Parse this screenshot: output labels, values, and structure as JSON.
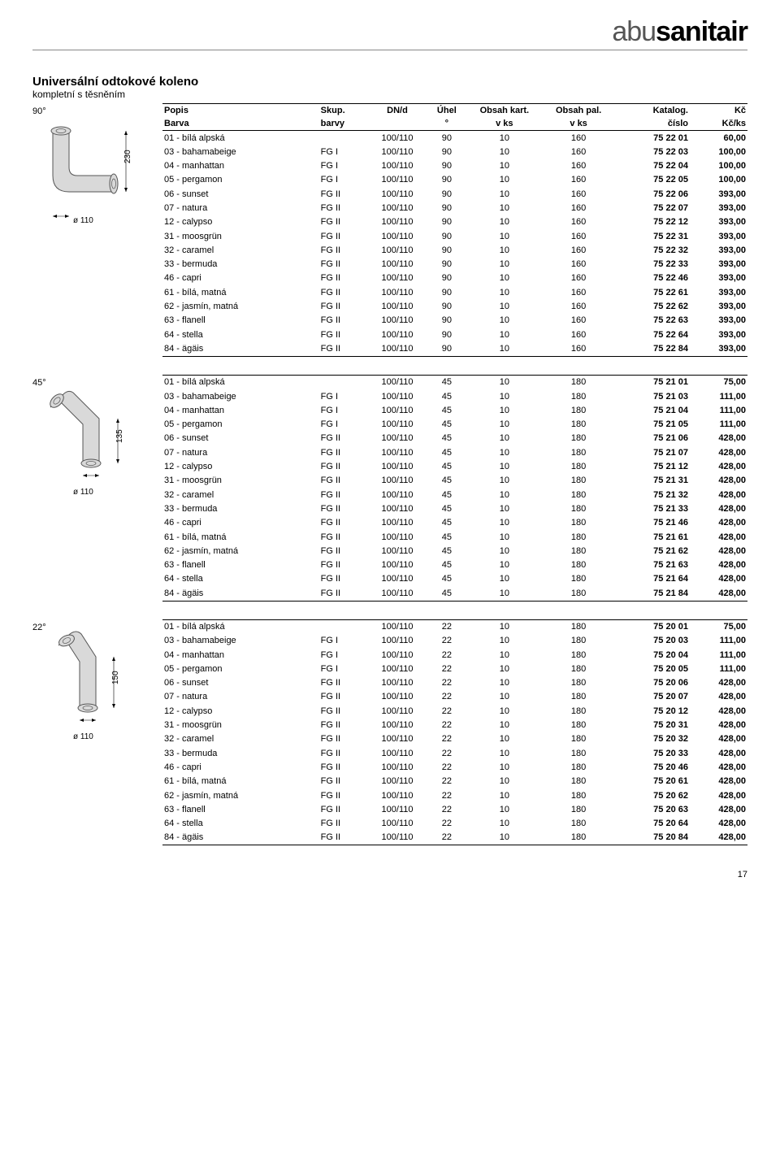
{
  "brand": {
    "part1": "abu",
    "part2": "sanitair"
  },
  "title": "Universální odtokové koleno",
  "subtitle": "kompletní s těsněním",
  "page_number": "17",
  "header": {
    "row1": [
      "Popis",
      "Skup.",
      "DN/d",
      "Úhel",
      "Obsah kart.",
      "Obsah pal.",
      "Katalog.",
      "Kč"
    ],
    "row2": [
      "Barva",
      "barvy",
      "",
      "°",
      "v ks",
      "v ks",
      "číslo",
      "Kč/ks"
    ]
  },
  "sections": [
    {
      "angle_label": "90°",
      "dim_label": "ø 110",
      "dim_v": "230",
      "svg_type": "elbow90",
      "rows": [
        [
          "01 - bílá alpská",
          "",
          "100/110",
          "90",
          "10",
          "160",
          "75 22 01",
          "60,00"
        ],
        [
          "03 - bahamabeige",
          "FG I",
          "100/110",
          "90",
          "10",
          "160",
          "75 22 03",
          "100,00"
        ],
        [
          "04 - manhattan",
          "FG I",
          "100/110",
          "90",
          "10",
          "160",
          "75 22 04",
          "100,00"
        ],
        [
          "05 - pergamon",
          "FG I",
          "100/110",
          "90",
          "10",
          "160",
          "75 22 05",
          "100,00"
        ],
        [
          "06 - sunset",
          "FG II",
          "100/110",
          "90",
          "10",
          "160",
          "75 22 06",
          "393,00"
        ],
        [
          "07 - natura",
          "FG II",
          "100/110",
          "90",
          "10",
          "160",
          "75 22 07",
          "393,00"
        ],
        [
          "12 - calypso",
          "FG II",
          "100/110",
          "90",
          "10",
          "160",
          "75 22 12",
          "393,00"
        ],
        [
          "31 - moosgrün",
          "FG II",
          "100/110",
          "90",
          "10",
          "160",
          "75 22 31",
          "393,00"
        ],
        [
          "32 - caramel",
          "FG II",
          "100/110",
          "90",
          "10",
          "160",
          "75 22 32",
          "393,00"
        ],
        [
          "33 - bermuda",
          "FG II",
          "100/110",
          "90",
          "10",
          "160",
          "75 22 33",
          "393,00"
        ],
        [
          "46 - capri",
          "FG II",
          "100/110",
          "90",
          "10",
          "160",
          "75 22 46",
          "393,00"
        ],
        [
          "61 - bílá, matná",
          "FG II",
          "100/110",
          "90",
          "10",
          "160",
          "75 22 61",
          "393,00"
        ],
        [
          "62 - jasmín, matná",
          "FG II",
          "100/110",
          "90",
          "10",
          "160",
          "75 22 62",
          "393,00"
        ],
        [
          "63 - flanell",
          "FG II",
          "100/110",
          "90",
          "10",
          "160",
          "75 22 63",
          "393,00"
        ],
        [
          "64 - stella",
          "FG II",
          "100/110",
          "90",
          "10",
          "160",
          "75 22 64",
          "393,00"
        ],
        [
          "84 - ägäis",
          "FG II",
          "100/110",
          "90",
          "10",
          "160",
          "75 22 84",
          "393,00"
        ]
      ]
    },
    {
      "angle_label": "45°",
      "dim_label": "ø 110",
      "dim_v": "135",
      "svg_type": "elbow45",
      "rows": [
        [
          "01 - bílá alpská",
          "",
          "100/110",
          "45",
          "10",
          "180",
          "75 21 01",
          "75,00"
        ],
        [
          "03 - bahamabeige",
          "FG I",
          "100/110",
          "45",
          "10",
          "180",
          "75 21 03",
          "111,00"
        ],
        [
          "04 - manhattan",
          "FG I",
          "100/110",
          "45",
          "10",
          "180",
          "75 21 04",
          "111,00"
        ],
        [
          "05 - pergamon",
          "FG I",
          "100/110",
          "45",
          "10",
          "180",
          "75 21 05",
          "111,00"
        ],
        [
          "06 - sunset",
          "FG II",
          "100/110",
          "45",
          "10",
          "180",
          "75 21 06",
          "428,00"
        ],
        [
          "07 - natura",
          "FG II",
          "100/110",
          "45",
          "10",
          "180",
          "75 21 07",
          "428,00"
        ],
        [
          "12 - calypso",
          "FG II",
          "100/110",
          "45",
          "10",
          "180",
          "75 21 12",
          "428,00"
        ],
        [
          "31 - moosgrün",
          "FG II",
          "100/110",
          "45",
          "10",
          "180",
          "75 21 31",
          "428,00"
        ],
        [
          "32 - caramel",
          "FG II",
          "100/110",
          "45",
          "10",
          "180",
          "75 21 32",
          "428,00"
        ],
        [
          "33 - bermuda",
          "FG II",
          "100/110",
          "45",
          "10",
          "180",
          "75 21 33",
          "428,00"
        ],
        [
          "46 - capri",
          "FG II",
          "100/110",
          "45",
          "10",
          "180",
          "75 21 46",
          "428,00"
        ],
        [
          "61 - bílá, matná",
          "FG II",
          "100/110",
          "45",
          "10",
          "180",
          "75 21 61",
          "428,00"
        ],
        [
          "62 - jasmín, matná",
          "FG II",
          "100/110",
          "45",
          "10",
          "180",
          "75 21 62",
          "428,00"
        ],
        [
          "63 - flanell",
          "FG II",
          "100/110",
          "45",
          "10",
          "180",
          "75 21 63",
          "428,00"
        ],
        [
          "64 - stella",
          "FG II",
          "100/110",
          "45",
          "10",
          "180",
          "75 21 64",
          "428,00"
        ],
        [
          "84 - ägäis",
          "FG II",
          "100/110",
          "45",
          "10",
          "180",
          "75 21 84",
          "428,00"
        ]
      ]
    },
    {
      "angle_label": "22°",
      "dim_label": "ø 110",
      "dim_v": "150",
      "svg_type": "elbow22",
      "rows": [
        [
          "01 - bílá alpská",
          "",
          "100/110",
          "22",
          "10",
          "180",
          "75 20 01",
          "75,00"
        ],
        [
          "03 - bahamabeige",
          "FG I",
          "100/110",
          "22",
          "10",
          "180",
          "75 20 03",
          "111,00"
        ],
        [
          "04 - manhattan",
          "FG I",
          "100/110",
          "22",
          "10",
          "180",
          "75 20 04",
          "111,00"
        ],
        [
          "05 - pergamon",
          "FG I",
          "100/110",
          "22",
          "10",
          "180",
          "75 20 05",
          "111,00"
        ],
        [
          "06 - sunset",
          "FG II",
          "100/110",
          "22",
          "10",
          "180",
          "75 20 06",
          "428,00"
        ],
        [
          "07 - natura",
          "FG II",
          "100/110",
          "22",
          "10",
          "180",
          "75 20 07",
          "428,00"
        ],
        [
          "12 - calypso",
          "FG II",
          "100/110",
          "22",
          "10",
          "180",
          "75 20 12",
          "428,00"
        ],
        [
          "31 - moosgrün",
          "FG II",
          "100/110",
          "22",
          "10",
          "180",
          "75 20 31",
          "428,00"
        ],
        [
          "32 - caramel",
          "FG II",
          "100/110",
          "22",
          "10",
          "180",
          "75 20 32",
          "428,00"
        ],
        [
          "33 - bermuda",
          "FG II",
          "100/110",
          "22",
          "10",
          "180",
          "75 20 33",
          "428,00"
        ],
        [
          "46 - capri",
          "FG II",
          "100/110",
          "22",
          "10",
          "180",
          "75 20 46",
          "428,00"
        ],
        [
          "61 - bílá, matná",
          "FG II",
          "100/110",
          "22",
          "10",
          "180",
          "75 20 61",
          "428,00"
        ],
        [
          "62 - jasmín, matná",
          "FG II",
          "100/110",
          "22",
          "10",
          "180",
          "75 20 62",
          "428,00"
        ],
        [
          "63 - flanell",
          "FG II",
          "100/110",
          "22",
          "10",
          "180",
          "75 20 63",
          "428,00"
        ],
        [
          "64 - stella",
          "FG II",
          "100/110",
          "22",
          "10",
          "180",
          "75 20 64",
          "428,00"
        ],
        [
          "84 - ägäis",
          "FG II",
          "100/110",
          "22",
          "10",
          "180",
          "75 20 84",
          "428,00"
        ]
      ]
    }
  ],
  "colors": {
    "diagram_fill": "#d9d9d9",
    "diagram_stroke": "#555555"
  }
}
